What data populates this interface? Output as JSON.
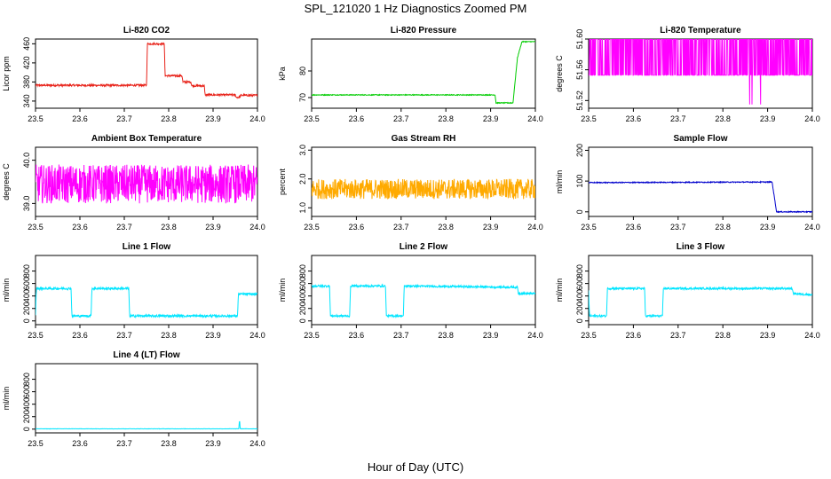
{
  "title": "SPL_121020  1 Hz Diagnostics Zoomed PM",
  "xlabel": "Hour of Day (UTC)",
  "chart_data": [
    {
      "type": "line",
      "title": "Li-820 CO2",
      "ylabel": "Licor ppm",
      "color": "#e8231a",
      "xlim": [
        23.5,
        24.0
      ],
      "ylim": [
        325,
        470
      ],
      "xticks": [
        "23.5",
        "23.6",
        "23.7",
        "23.8",
        "23.9",
        "24.0"
      ],
      "yticks": [
        "340",
        "380",
        "420",
        "460"
      ],
      "series": [
        {
          "x": [
            23.5,
            23.75,
            23.752,
            23.79,
            23.792,
            23.83,
            23.832,
            23.85,
            23.852,
            23.88,
            23.882,
            23.95,
            23.952,
            23.96,
            23.962,
            24.0
          ],
          "y": [
            373,
            373,
            460,
            460,
            393,
            393,
            380,
            380,
            372,
            372,
            353,
            353,
            348,
            348,
            352,
            352
          ],
          "noise": 2.0
        }
      ]
    },
    {
      "type": "line",
      "title": "Li-820 Pressure",
      "ylabel": "kPa",
      "color": "#00cc00",
      "xlim": [
        23.5,
        24.0
      ],
      "ylim": [
        66,
        92
      ],
      "xticks": [
        "23.5",
        "23.6",
        "23.7",
        "23.8",
        "23.9",
        "24.0"
      ],
      "yticks": [
        "70",
        "80"
      ],
      "series": [
        {
          "x": [
            23.5,
            23.91,
            23.912,
            23.95,
            23.96,
            23.97,
            24.0
          ],
          "y": [
            71,
            71,
            68,
            68,
            85,
            91,
            91
          ],
          "noise": 0.15
        }
      ]
    },
    {
      "type": "line",
      "title": "Li-820 Temperature",
      "ylabel": "degrees C",
      "color": "#ff00ff",
      "xlim": [
        23.5,
        24.0
      ],
      "ylim": [
        51.51,
        51.6
      ],
      "xticks": [
        "23.5",
        "23.6",
        "23.7",
        "23.8",
        "23.9",
        "24.0"
      ],
      "yticks": [
        "51.52",
        "51.56",
        "51.60"
      ],
      "series": [
        {
          "x": [
            23.5,
            24.0
          ],
          "y": [
            51.553,
            51.553
          ],
          "noise": 0
        }
      ],
      "band": {
        "low": 51.553,
        "high": 51.6,
        "dips_to": 51.515
      }
    },
    {
      "type": "line",
      "title": "Ambient Box Temperature",
      "ylabel": "degrees C",
      "color": "#ff00ff",
      "xlim": [
        23.5,
        24.0
      ],
      "ylim": [
        38.7,
        40.3
      ],
      "xticks": [
        "23.5",
        "23.6",
        "23.7",
        "23.8",
        "23.9",
        "24.0"
      ],
      "yticks": [
        "39.0",
        "40.0"
      ],
      "series": [
        {
          "x": [
            23.5,
            24.0
          ],
          "y": [
            39.45,
            39.45
          ],
          "noise": 0.45
        }
      ]
    },
    {
      "type": "line",
      "title": "Gas Stream RH",
      "ylabel": "percent",
      "color": "#ffaa00",
      "xlim": [
        23.5,
        24.0
      ],
      "ylim": [
        0.7,
        3.1
      ],
      "xticks": [
        "23.5",
        "23.6",
        "23.7",
        "23.8",
        "23.9",
        "24.0"
      ],
      "yticks": [
        "1.0",
        "2.0",
        "3.0"
      ],
      "series": [
        {
          "x": [
            23.5,
            24.0
          ],
          "y": [
            1.65,
            1.65
          ],
          "noise": 0.35
        }
      ]
    },
    {
      "type": "line",
      "title": "Sample Flow",
      "ylabel": "ml/min",
      "color": "#0000cc",
      "xlim": [
        23.5,
        24.0
      ],
      "ylim": [
        -15,
        210
      ],
      "xticks": [
        "23.5",
        "23.6",
        "23.7",
        "23.8",
        "23.9",
        "24.0"
      ],
      "yticks": [
        "0",
        "100",
        "200"
      ],
      "series": [
        {
          "x": [
            23.5,
            23.91,
            23.92,
            24.0
          ],
          "y": [
            95,
            97,
            0,
            0
          ],
          "noise": 1.5
        }
      ]
    },
    {
      "type": "line",
      "title": "Line 1 Flow",
      "ylabel": "ml/min",
      "color": "#00e5ff",
      "xlim": [
        23.5,
        24.0
      ],
      "ylim": [
        -60,
        1050
      ],
      "xticks": [
        "23.5",
        "23.6",
        "23.7",
        "23.8",
        "23.9",
        "24.0"
      ],
      "yticks": [
        "0",
        "200",
        "400",
        "600",
        "800"
      ],
      "series": [
        {
          "x": [
            23.5,
            23.502,
            23.58,
            23.582,
            23.625,
            23.627,
            23.71,
            23.712,
            23.955,
            23.957,
            24.0
          ],
          "y": [
            100,
            520,
            520,
            80,
            80,
            520,
            520,
            80,
            80,
            430,
            430
          ],
          "noise": 18
        }
      ]
    },
    {
      "type": "line",
      "title": "Line 2 Flow",
      "ylabel": "ml/min",
      "color": "#00e5ff",
      "xlim": [
        23.5,
        24.0
      ],
      "ylim": [
        -60,
        1050
      ],
      "xticks": [
        "23.5",
        "23.6",
        "23.7",
        "23.8",
        "23.9",
        "24.0"
      ],
      "yticks": [
        "0",
        "200",
        "400",
        "600",
        "800"
      ],
      "series": [
        {
          "x": [
            23.5,
            23.54,
            23.542,
            23.585,
            23.587,
            23.665,
            23.667,
            23.705,
            23.707,
            23.96,
            23.962,
            24.0
          ],
          "y": [
            560,
            560,
            80,
            80,
            560,
            560,
            80,
            80,
            560,
            540,
            440,
            440
          ],
          "noise": 16
        }
      ]
    },
    {
      "type": "line",
      "title": "Line 3 Flow",
      "ylabel": "ml/min",
      "color": "#00e5ff",
      "xlim": [
        23.5,
        24.0
      ],
      "ylim": [
        -60,
        1050
      ],
      "xticks": [
        "23.5",
        "23.6",
        "23.7",
        "23.8",
        "23.9",
        "24.0"
      ],
      "yticks": [
        "0",
        "200",
        "400",
        "600",
        "800"
      ],
      "series": [
        {
          "x": [
            23.5,
            23.502,
            23.54,
            23.542,
            23.625,
            23.627,
            23.665,
            23.667,
            23.955,
            23.957,
            24.0
          ],
          "y": [
            480,
            80,
            80,
            520,
            520,
            80,
            80,
            520,
            520,
            440,
            420
          ],
          "noise": 16
        }
      ]
    },
    {
      "type": "line",
      "title": "Line 4 (LT) Flow",
      "ylabel": "ml/min",
      "color": "#00e5ff",
      "xlim": [
        23.5,
        24.0
      ],
      "ylim": [
        -60,
        1050
      ],
      "xticks": [
        "23.5",
        "23.6",
        "23.7",
        "23.8",
        "23.9",
        "24.0"
      ],
      "yticks": [
        "0",
        "200",
        "400",
        "600",
        "800"
      ],
      "series": [
        {
          "x": [
            23.5,
            23.958,
            23.959,
            23.96,
            23.961,
            24.0
          ],
          "y": [
            5,
            5,
            120,
            120,
            5,
            5
          ],
          "noise": 2
        }
      ]
    }
  ]
}
